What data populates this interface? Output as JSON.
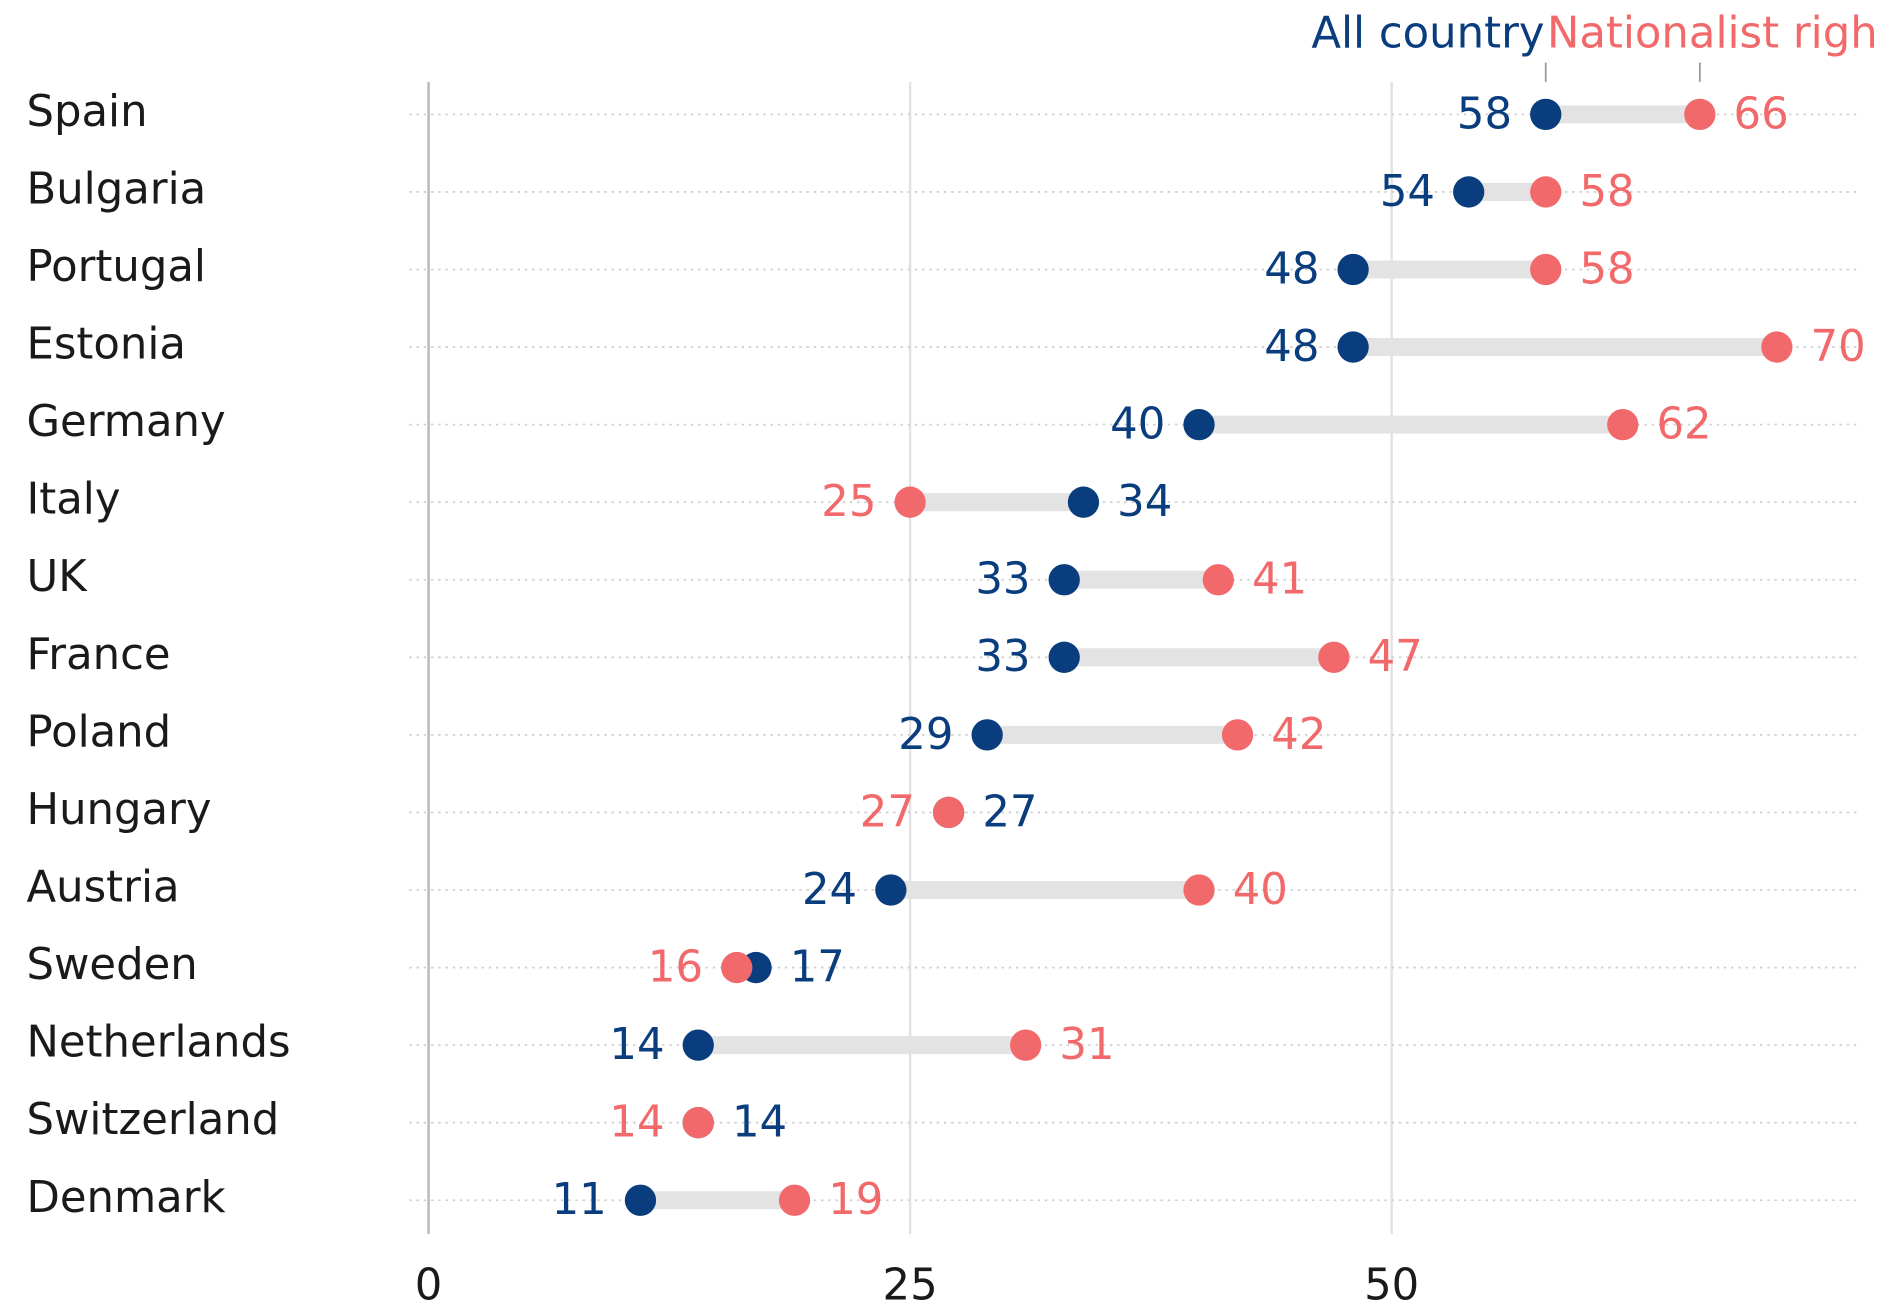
{
  "chart_data": {
    "type": "dumbbell",
    "categories": [
      "Spain",
      "Bulgaria",
      "Portugal",
      "Estonia",
      "Germany",
      "Italy",
      "UK",
      "France",
      "Poland",
      "Hungary",
      "Austria",
      "Sweden",
      "Netherlands",
      "Switzerland",
      "Denmark"
    ],
    "series": [
      {
        "name": "All country",
        "color": "#0a3d7d",
        "values": [
          58,
          54,
          48,
          48,
          40,
          34,
          33,
          33,
          29,
          27,
          24,
          17,
          14,
          14,
          11
        ]
      },
      {
        "name": "Nationalist right",
        "color": "#f2696b",
        "values": [
          66,
          58,
          58,
          70,
          62,
          25,
          41,
          47,
          42,
          27,
          40,
          16,
          31,
          14,
          19
        ]
      }
    ],
    "xlim": [
      0,
      74
    ],
    "xticks": [
      0,
      25,
      50
    ],
    "grid": true
  }
}
